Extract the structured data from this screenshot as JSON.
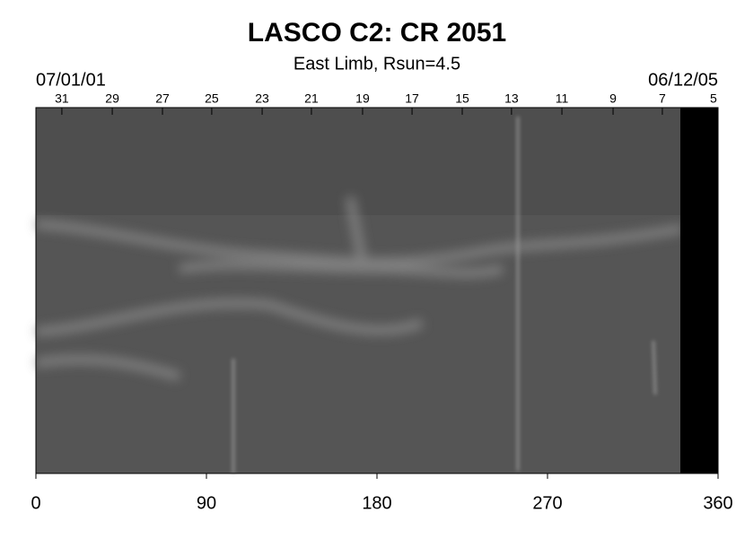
{
  "chart_data": {
    "type": "synoptic-map",
    "title": "LASCO C2: CR 2051",
    "subtitle": "East Limb, Rsun=4.5",
    "start_date_label": "07/01/01",
    "end_date_label": "06/12/05",
    "xlim": [
      0,
      360
    ],
    "xticks": [
      0,
      90,
      180,
      270,
      360
    ],
    "x2ticks": [
      {
        "value": 13.7,
        "label": "31"
      },
      {
        "value": 40.3,
        "label": "29"
      },
      {
        "value": 66.8,
        "label": "27"
      },
      {
        "value": 92.8,
        "label": "25"
      },
      {
        "value": 119.4,
        "label": "23"
      },
      {
        "value": 145.4,
        "label": "21"
      },
      {
        "value": 172.4,
        "label": "19"
      },
      {
        "value": 198.5,
        "label": "17"
      },
      {
        "value": 225,
        "label": "15"
      },
      {
        "value": 251,
        "label": "13"
      },
      {
        "value": 277.6,
        "label": "11"
      },
      {
        "value": 304.6,
        "label": "9"
      },
      {
        "value": 330.6,
        "label": "7"
      },
      {
        "value": 357.6,
        "label": "5"
      }
    ]
  }
}
